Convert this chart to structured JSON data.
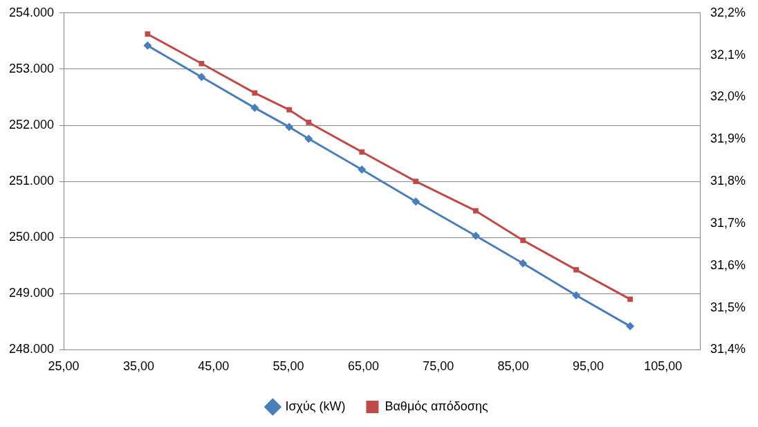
{
  "chart_data": {
    "type": "line",
    "x": [
      36.2,
      43.4,
      50.5,
      55.1,
      57.7,
      64.8,
      72.0,
      80.0,
      86.3,
      93.4,
      100.6
    ],
    "series": [
      {
        "name": "Ισχύς (kW)",
        "color": "#4a7ebb",
        "marker": "diamond",
        "values": [
          253420,
          252860,
          252310,
          251970,
          251760,
          251210,
          250640,
          250030,
          249540,
          248970,
          248420
        ]
      },
      {
        "name": "Βαθμός απόδοσης",
        "color": "#be4b48",
        "marker": "square",
        "axis": "y2",
        "values": [
          32.15,
          32.08,
          32.01,
          31.97,
          31.94,
          31.87,
          31.8,
          31.73,
          31.66,
          31.59,
          31.52
        ]
      }
    ],
    "xlim": [
      25,
      110
    ],
    "xticks": [
      {
        "value": 25,
        "label": "25,00"
      },
      {
        "value": 35,
        "label": "35,00"
      },
      {
        "value": 45,
        "label": "45,00"
      },
      {
        "value": 55,
        "label": "55,00"
      },
      {
        "value": 65,
        "label": "65,00"
      },
      {
        "value": 75,
        "label": "75,00"
      },
      {
        "value": 85,
        "label": "85,00"
      },
      {
        "value": 95,
        "label": "95,00"
      },
      {
        "value": 105,
        "label": "105,00"
      }
    ],
    "ylim": [
      248000,
      254000
    ],
    "yticks": [
      {
        "value": 248000,
        "label": "248.000"
      },
      {
        "value": 249000,
        "label": "249.000"
      },
      {
        "value": 250000,
        "label": "250.000"
      },
      {
        "value": 251000,
        "label": "251.000"
      },
      {
        "value": 252000,
        "label": "252.000"
      },
      {
        "value": 253000,
        "label": "253.000"
      },
      {
        "value": 254000,
        "label": "254.000"
      }
    ],
    "y2lim": [
      31.4,
      32.2
    ],
    "y2ticks": [
      {
        "value": 31.4,
        "label": "31,4%"
      },
      {
        "value": 31.5,
        "label": "31,5%"
      },
      {
        "value": 31.6,
        "label": "31,6%"
      },
      {
        "value": 31.7,
        "label": "31,7%"
      },
      {
        "value": 31.8,
        "label": "31,8%"
      },
      {
        "value": 31.9,
        "label": "31,9%"
      },
      {
        "value": 32.0,
        "label": "32,0%"
      },
      {
        "value": 32.1,
        "label": "32,1%"
      },
      {
        "value": 32.2,
        "label": "32,2%"
      }
    ],
    "grid": "y",
    "legend": "bottom",
    "line_style": "solid"
  }
}
